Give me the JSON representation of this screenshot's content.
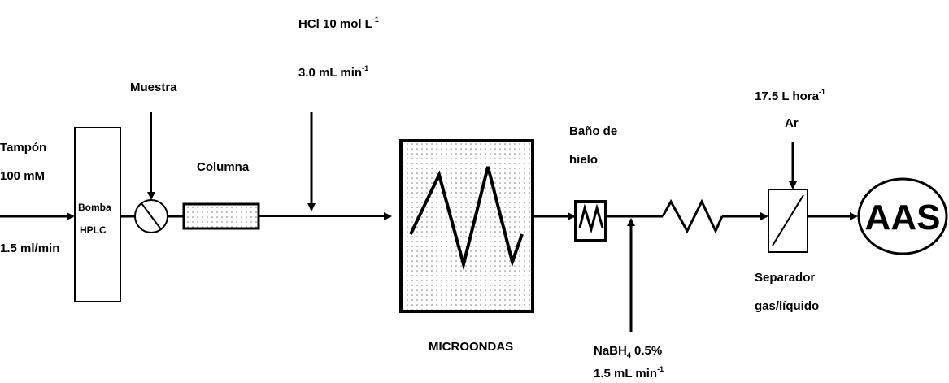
{
  "labels": {
    "tampon": [
      "Tampón",
      "100 mM"
    ],
    "flow_in": "1.5 ml/min",
    "pump": [
      "Bomba",
      "HPLC"
    ],
    "sample": "Muestra",
    "column": "Columna",
    "hcl": {
      "text": "HCl 10 mol L",
      "sup": "-1"
    },
    "hcl_flow": {
      "text": "3.0 mL min",
      "sup": "-1"
    },
    "microwave": "MICROONDAS",
    "ice_bath": [
      "Baño de",
      "hielo"
    ],
    "nabh4": {
      "text": "NaBH",
      "sub": "4",
      "rest": " 0.5%"
    },
    "nabh4_flow": {
      "text": "1.5 mL min",
      "sup": "-1"
    },
    "ar_flow": {
      "text": "17.5 L hora",
      "sup": "-1"
    },
    "ar": "Ar",
    "separator": [
      "Separador",
      "gas/líquido"
    ],
    "detector": "AAS"
  }
}
